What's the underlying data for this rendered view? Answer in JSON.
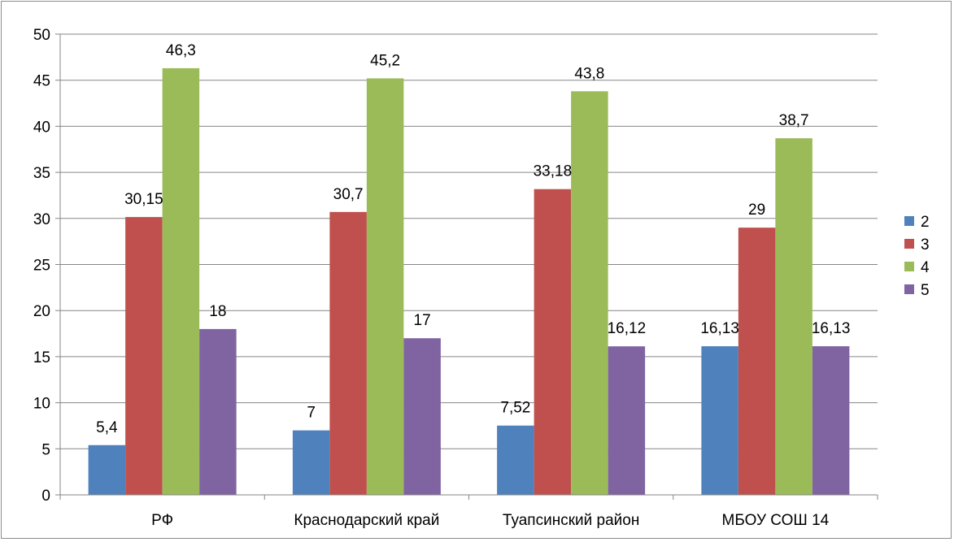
{
  "chart_data": {
    "type": "bar",
    "title": "",
    "xlabel": "",
    "ylabel": "",
    "categories": [
      "РФ",
      "Краснодарский край",
      "Туапсинский район",
      "МБОУ СОШ 14"
    ],
    "series": [
      {
        "name": "2",
        "color": "#4F81BD",
        "values": [
          5.4,
          7,
          7.52,
          16.13
        ],
        "labels": [
          "5,4",
          "7",
          "7,52",
          "16,13"
        ]
      },
      {
        "name": "3",
        "color": "#C0504D",
        "values": [
          30.15,
          30.7,
          33.18,
          29
        ],
        "labels": [
          "30,15",
          "30,7",
          "33,18",
          "29"
        ]
      },
      {
        "name": "4",
        "color": "#9BBB59",
        "values": [
          46.3,
          45.2,
          43.8,
          38.7
        ],
        "labels": [
          "46,3",
          "45,2",
          "43,8",
          "38,7"
        ]
      },
      {
        "name": "5",
        "color": "#8064A2",
        "values": [
          18,
          17,
          16.12,
          16.13
        ],
        "labels": [
          "18",
          "17",
          "16,12",
          "16,13"
        ]
      }
    ],
    "ylim": [
      0,
      50
    ],
    "yticks": [
      0,
      5,
      10,
      15,
      20,
      25,
      30,
      35,
      40,
      45,
      50
    ],
    "grid": true,
    "legend": "right"
  }
}
